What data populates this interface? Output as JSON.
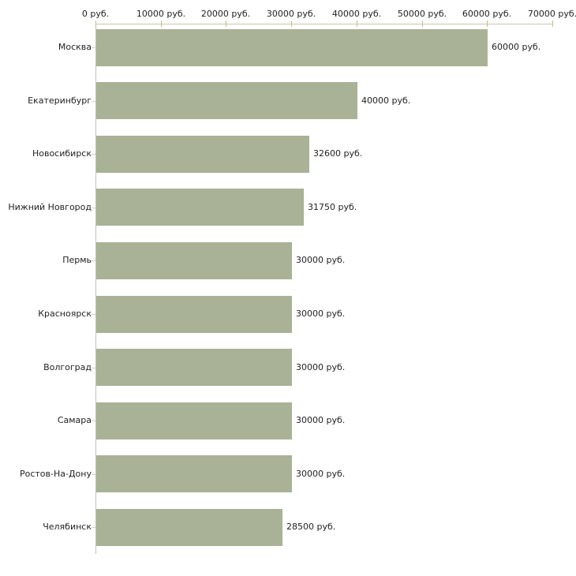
{
  "chart_data": {
    "type": "bar",
    "orientation": "horizontal",
    "title": "",
    "xlabel": "",
    "ylabel": "",
    "unit": "руб.",
    "categories": [
      "Москва",
      "Екатеринбург",
      "Новосибирск",
      "Нижний Новгород",
      "Пермь",
      "Красноярск",
      "Волгоград",
      "Самара",
      "Ростов-На-Дону",
      "Челябинск"
    ],
    "values": [
      60000,
      40000,
      32600,
      31750,
      30000,
      30000,
      30000,
      30000,
      30000,
      28500
    ],
    "value_labels": [
      "60000 руб.",
      "40000 руб.",
      "32600 руб.",
      "31750 руб.",
      "30000 руб.",
      "30000 руб.",
      "30000 руб.",
      "30000 руб.",
      "30000 руб.",
      "28500 руб."
    ],
    "x_ticks": [
      0,
      10000,
      20000,
      30000,
      40000,
      50000,
      60000,
      70000
    ],
    "x_tick_labels": [
      "0 руб.",
      "10000 руб.",
      "20000 руб.",
      "30000 руб.",
      "40000 руб.",
      "50000 руб.",
      "60000 руб.",
      "70000 руб."
    ],
    "xlim": [
      0,
      70000
    ],
    "grid": false,
    "legend": false,
    "colors": {
      "bar_fill": "#a9b296",
      "x_axis_line": "#c9c6ae",
      "x_tick": "#c2bd8e",
      "y_axis_line": "#c0c0c0",
      "y_tick": "#d6d3bc",
      "text": "#222222"
    }
  }
}
